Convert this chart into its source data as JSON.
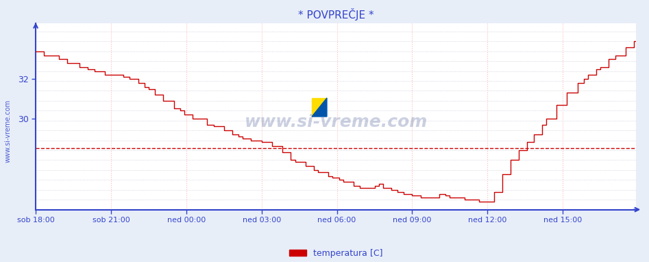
{
  "title": "* POVPREČJE *",
  "bg_color": "#e8eef8",
  "plot_bg_color": "#ffffff",
  "line_color": "#cc0000",
  "axis_color": "#3344cc",
  "grid_color_v": "#ffbbbb",
  "grid_color_h": "#ccccdd",
  "text_color": "#3344cc",
  "legend_label": "temperatura [C]",
  "legend_color": "#cc0000",
  "x_labels": [
    "sob 18:00",
    "sob 21:00",
    "ned 00:00",
    "ned 03:00",
    "ned 06:00",
    "ned 09:00",
    "ned 12:00",
    "ned 15:00"
  ],
  "n_points": 288,
  "ylim_min": 25.4,
  "ylim_max": 34.8,
  "y_ticks": [
    30,
    32
  ],
  "avg_line_y": 28.5,
  "watermark": "www.si-vreme.com",
  "keypoints_x": [
    0,
    2,
    6,
    10,
    16,
    22,
    30,
    36,
    42,
    48,
    54,
    60,
    66,
    72,
    80,
    90,
    100,
    108,
    112,
    118,
    120,
    124,
    128,
    130,
    132,
    136,
    140,
    144,
    148,
    150,
    156,
    160,
    162,
    164,
    166,
    168,
    172,
    176,
    180,
    184,
    188,
    190,
    192,
    194,
    196,
    200,
    208,
    216,
    220,
    226,
    232,
    238,
    244,
    250,
    256,
    264,
    272,
    280,
    287
  ],
  "keypoints_y": [
    33.4,
    33.3,
    33.2,
    33.1,
    32.8,
    32.6,
    32.3,
    32.2,
    32.1,
    31.8,
    31.5,
    31.0,
    30.5,
    30.2,
    29.8,
    29.4,
    29.0,
    28.8,
    28.6,
    28.3,
    28.0,
    27.8,
    27.6,
    27.5,
    27.4,
    27.3,
    27.1,
    26.9,
    26.8,
    26.7,
    26.5,
    26.5,
    26.6,
    26.7,
    26.5,
    26.4,
    26.3,
    26.2,
    26.1,
    26.0,
    25.9,
    26.0,
    26.1,
    26.2,
    26.1,
    26.0,
    25.9,
    25.8,
    26.5,
    27.8,
    28.5,
    29.2,
    30.0,
    30.8,
    31.5,
    32.2,
    32.8,
    33.5,
    34.0
  ]
}
